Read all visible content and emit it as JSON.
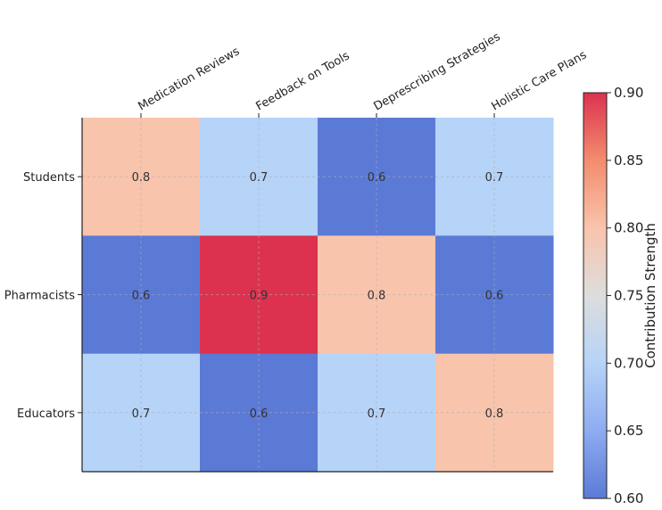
{
  "chart_data": {
    "type": "heatmap",
    "title": "",
    "x_categories": [
      "Medication Reviews",
      "Feedback on Tools",
      "Deprescribing Strategies",
      "Holistic Care Plans"
    ],
    "y_categories": [
      "Students",
      "Pharmacists",
      "Educators"
    ],
    "values": [
      [
        0.8,
        0.7,
        0.6,
        0.7
      ],
      [
        0.6,
        0.9,
        0.8,
        0.6
      ],
      [
        0.7,
        0.6,
        0.7,
        0.8
      ]
    ],
    "value_labels": [
      [
        "0.8",
        "0.7",
        "0.6",
        "0.7"
      ],
      [
        "0.6",
        "0.9",
        "0.8",
        "0.6"
      ],
      [
        "0.7",
        "0.6",
        "0.7",
        "0.8"
      ]
    ],
    "colorbar": {
      "label": "Contribution Strength",
      "range": [
        0.6,
        0.9
      ],
      "ticks": [
        "0.60",
        "0.65",
        "0.70",
        "0.75",
        "0.80",
        "0.85",
        "0.90"
      ],
      "colormap": "coolwarm"
    },
    "colors": {
      "0.6": "#5b7ad6",
      "0.7": "#b6d3f8",
      "0.8": "#f9c4ac",
      "0.9": "#dc3250"
    },
    "grid": true,
    "x_label_position": "top",
    "x_label_rotation": -30
  }
}
